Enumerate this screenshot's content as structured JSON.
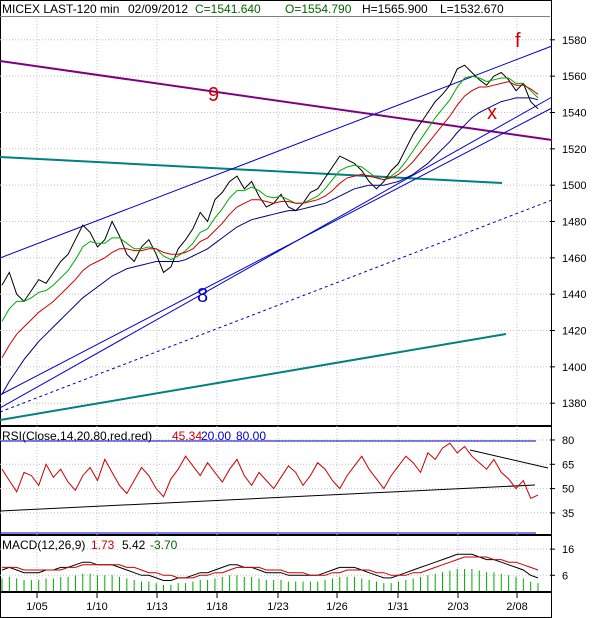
{
  "header": {
    "symbol": "MICEX LAST-120 min",
    "date": "02/09/2012",
    "close": "C=1541.640",
    "open": "O=1554.790",
    "high": "H=1565.900",
    "low": "L=1532.670"
  },
  "rsi_header": {
    "label": "RSI(Close,14,20,80,red,red)",
    "value": "45.34",
    "lower": "20.00",
    "upper": "80.00"
  },
  "macd_header": {
    "label": "MACD(12,26,9)",
    "v1": "1.73",
    "v2": "5.42",
    "v3": "-3.70"
  },
  "annotations": [
    {
      "text": "9",
      "color": "#cc0000"
    },
    {
      "text": "8",
      "color": "#0000cc"
    },
    {
      "text": "x",
      "color": "#cc0000"
    },
    {
      "text": "f",
      "color": "#cc0000"
    }
  ],
  "colors": {
    "price": "#000000",
    "ma_short": "#00aa00",
    "ma_mid": "#cc0000",
    "ma_long": "#000080",
    "channel": "#0000cc",
    "resistance": "#800080",
    "support_teal": "#008080",
    "rsi": "#cc0000",
    "macd": "#000000",
    "signal": "#cc0000",
    "histogram": "#00aa00",
    "grid": "#c0c0c0"
  },
  "chart_data": [
    {
      "type": "line",
      "panel": "price",
      "y_ticks": [
        1380,
        1400,
        1420,
        1440,
        1460,
        1480,
        1500,
        1520,
        1540,
        1560,
        1580
      ],
      "ylim": [
        1368,
        1592
      ],
      "x_tick_labels": [
        "1/05",
        "1/10",
        "1/13",
        "1/18",
        "1/23",
        "1/26",
        "1/31",
        "2/03",
        "2/08"
      ],
      "grid": true,
      "series": [
        {
          "values": [
            1445,
            1452,
            1440,
            1436,
            1442,
            1448,
            1446,
            1452,
            1458,
            1462,
            1470,
            1478,
            1474,
            1466,
            1470,
            1480,
            1472,
            1462,
            1458,
            1466,
            1470,
            1462,
            1452,
            1455,
            1465,
            1470,
            1476,
            1485,
            1480,
            1492,
            1496,
            1502,
            1505,
            1498,
            1502,
            1494,
            1488,
            1490,
            1495,
            1488,
            1486,
            1490,
            1496,
            1498,
            1504,
            1510,
            1516,
            1514,
            1512,
            1508,
            1502,
            1498,
            1502,
            1508,
            1512,
            1520,
            1528,
            1534,
            1540,
            1546,
            1550,
            1555,
            1564,
            1566,
            1562,
            1558,
            1555,
            1560,
            1562,
            1558,
            1552,
            1556,
            1546,
            1542
          ]
        },
        {
          "values": [
            1425,
            1432,
            1436,
            1436,
            1438,
            1441,
            1442,
            1445,
            1449,
            1453,
            1459,
            1466,
            1469,
            1468,
            1468,
            1471,
            1471,
            1468,
            1465,
            1465,
            1466,
            1465,
            1461,
            1459,
            1461,
            1464,
            1468,
            1474,
            1476,
            1482,
            1487,
            1493,
            1497,
            1497,
            1499,
            1497,
            1494,
            1493,
            1494,
            1492,
            1490,
            1490,
            1492,
            1494,
            1498,
            1503,
            1508,
            1510,
            1511,
            1510,
            1507,
            1504,
            1503,
            1505,
            1508,
            1513,
            1519,
            1525,
            1531,
            1537,
            1542,
            1547,
            1554,
            1559,
            1560,
            1559,
            1557,
            1558,
            1559,
            1559,
            1556,
            1556,
            1552,
            1548
          ]
        },
        {
          "values": [
            1405,
            1412,
            1418,
            1422,
            1426,
            1430,
            1433,
            1436,
            1440,
            1444,
            1448,
            1453,
            1456,
            1458,
            1460,
            1463,
            1465,
            1465,
            1464,
            1464,
            1465,
            1465,
            1463,
            1462,
            1462,
            1463,
            1465,
            1469,
            1471,
            1475,
            1479,
            1484,
            1488,
            1490,
            1492,
            1492,
            1491,
            1490,
            1491,
            1491,
            1490,
            1490,
            1491,
            1492,
            1494,
            1497,
            1501,
            1504,
            1505,
            1506,
            1505,
            1504,
            1503,
            1504,
            1506,
            1509,
            1513,
            1518,
            1523,
            1528,
            1533,
            1538,
            1544,
            1549,
            1552,
            1554,
            1554,
            1555,
            1556,
            1557,
            1555,
            1555,
            1553,
            1550
          ]
        },
        {
          "values": [
            1385,
            1392,
            1398,
            1404,
            1409,
            1414,
            1418,
            1422,
            1426,
            1430,
            1434,
            1438,
            1441,
            1444,
            1447,
            1450,
            1452,
            1454,
            1455,
            1456,
            1457,
            1458,
            1458,
            1458,
            1458,
            1459,
            1461,
            1463,
            1465,
            1468,
            1471,
            1474,
            1477,
            1479,
            1481,
            1482,
            1483,
            1484,
            1485,
            1486,
            1486,
            1487,
            1488,
            1489,
            1490,
            1492,
            1494,
            1496,
            1498,
            1499,
            1500,
            1500,
            1500,
            1501,
            1502,
            1504,
            1506,
            1509,
            1512,
            1516,
            1520,
            1524,
            1529,
            1533,
            1537,
            1540,
            1542,
            1544,
            1546,
            1547,
            1548,
            1548,
            1548,
            1547
          ]
        }
      ]
    },
    {
      "type": "line",
      "panel": "RSI(Close,14,20,80,red,red)",
      "y_ticks": [
        35,
        50,
        65,
        80
      ],
      "ylim": [
        22,
        88
      ],
      "series": [
        {
          "name": "RSI(Close,14,20,80,red,red)",
          "values": [
            62,
            55,
            48,
            60,
            58,
            52,
            65,
            57,
            62,
            54,
            49,
            58,
            63,
            55,
            68,
            60,
            52,
            47,
            55,
            63,
            58,
            50,
            45,
            56,
            62,
            70,
            64,
            58,
            66,
            60,
            54,
            62,
            68,
            58,
            52,
            60,
            55,
            50,
            57,
            64,
            60,
            52,
            58,
            66,
            62,
            55,
            50,
            58,
            64,
            70,
            62,
            56,
            50,
            58,
            64,
            70,
            66,
            60,
            72,
            68,
            75,
            78,
            72,
            76,
            70,
            66,
            62,
            68,
            60,
            56,
            50,
            55,
            44,
            46
          ]
        }
      ]
    },
    {
      "type": "line",
      "panel": "MACD(12,26,9)",
      "y_ticks": [
        6,
        16
      ],
      "ylim": [
        0,
        21
      ],
      "series": [
        {
          "name": "MACD(12,26,9)",
          "values": [
            8,
            9,
            8,
            7,
            7,
            7,
            8,
            8,
            9,
            9,
            10,
            11,
            11,
            10,
            10,
            10,
            9,
            8,
            7,
            6,
            6,
            5,
            4,
            4,
            5,
            5,
            6,
            7,
            7,
            8,
            9,
            10,
            10,
            9,
            9,
            8,
            7,
            7,
            7,
            6,
            6,
            6,
            6,
            6,
            7,
            8,
            9,
            9,
            9,
            8,
            7,
            6,
            5,
            5,
            6,
            7,
            8,
            9,
            10,
            11,
            12,
            13,
            14,
            14,
            14,
            13,
            12,
            12,
            11,
            10,
            9,
            8,
            6,
            5
          ]
        },
        {
          "name": "signal",
          "values": [
            9,
            9,
            9,
            8,
            8,
            8,
            8,
            8,
            8,
            9,
            9,
            10,
            10,
            10,
            10,
            10,
            10,
            9,
            9,
            8,
            7,
            7,
            6,
            6,
            5,
            5,
            5,
            6,
            6,
            7,
            7,
            8,
            9,
            9,
            9,
            9,
            8,
            8,
            8,
            7,
            7,
            7,
            6,
            6,
            6,
            7,
            7,
            8,
            8,
            8,
            8,
            7,
            7,
            6,
            6,
            6,
            7,
            7,
            8,
            9,
            10,
            11,
            12,
            13,
            13,
            13,
            13,
            12,
            12,
            11,
            11,
            10,
            9,
            8
          ]
        }
      ]
    }
  ]
}
